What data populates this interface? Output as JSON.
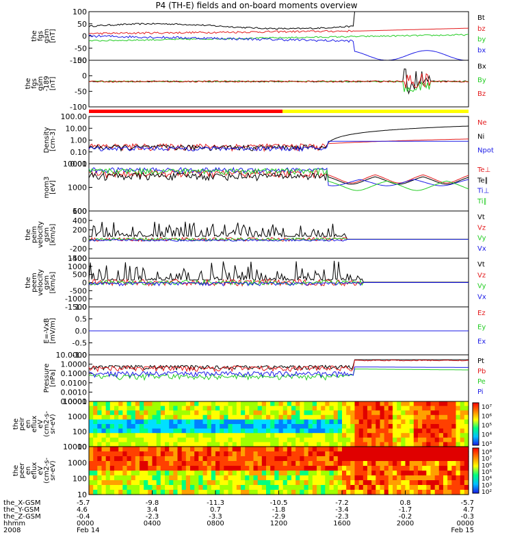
{
  "title": "P4 (TH-E) fields and on-board moments overview",
  "colors": {
    "black": "#000000",
    "red": "#e31a1c",
    "green": "#22cc22",
    "blue": "#1a1ae6",
    "yellow": "#ffff00"
  },
  "chart_data": [
    {
      "type": "line",
      "ylabel": [
        "the",
        "fgs",
        "gsm",
        "[nT]"
      ],
      "yticks": [
        "100",
        "50",
        "0",
        "-50",
        "-100"
      ],
      "ylim": [
        -100,
        100
      ],
      "series": [
        {
          "name": "Bt",
          "color": "black"
        },
        {
          "name": "bz",
          "color": "red"
        },
        {
          "name": "by",
          "color": "green"
        },
        {
          "name": "bx",
          "color": "blue"
        }
      ]
    },
    {
      "type": "line",
      "ylabel": [
        "the",
        "fgs",
        "gsm",
        "-189",
        "[nT]"
      ],
      "yticks": [
        "50",
        "0",
        "-50",
        "-100"
      ],
      "ylim": [
        -120,
        100
      ],
      "series": [
        {
          "name": "Bx",
          "color": "black"
        },
        {
          "name": "By",
          "color": "green"
        },
        {
          "name": "Bz",
          "color": "red"
        }
      ]
    },
    {
      "type": "line",
      "ylabel": [
        "Density",
        "[cm-3]"
      ],
      "yticks": [
        "100.00",
        "10.00",
        "1.00",
        "0.10",
        "0.01"
      ],
      "ylim": [
        0.01,
        100
      ],
      "log": true,
      "series": [
        {
          "name": "Ne",
          "color": "red"
        },
        {
          "name": "Ni",
          "color": "black"
        },
        {
          "name": "Npot",
          "color": "blue"
        }
      ]
    },
    {
      "type": "line",
      "ylabel": [
        "mom3",
        "[eV]"
      ],
      "yticks": [
        "10000",
        "1000",
        "100"
      ],
      "ylim": [
        10,
        10000
      ],
      "log": true,
      "series": [
        {
          "name": "Te⊥",
          "color": "red"
        },
        {
          "name": "Te∥",
          "color": "black"
        },
        {
          "name": "Ti⊥",
          "color": "blue"
        },
        {
          "name": "Ti∥",
          "color": "green"
        }
      ]
    },
    {
      "type": "line",
      "ylabel": [
        "the",
        "peim",
        "velocity",
        "gsm",
        "[km/s]"
      ],
      "yticks": [
        "600",
        "400",
        "200",
        "0",
        "-200",
        "-400"
      ],
      "ylim": [
        -400,
        600
      ],
      "series": [
        {
          "name": "Vt",
          "color": "black"
        },
        {
          "name": "Vz",
          "color": "red"
        },
        {
          "name": "Vy",
          "color": "green"
        },
        {
          "name": "Vx",
          "color": "blue"
        }
      ]
    },
    {
      "type": "line",
      "ylabel": [
        "the",
        "peem",
        "velocity",
        "gsm",
        "[km/s]"
      ],
      "yticks": [
        "1500",
        "1000",
        "500",
        "0",
        "-500",
        "-1000",
        "-1500"
      ],
      "ylim": [
        -1500,
        1500
      ],
      "series": [
        {
          "name": "Vt",
          "color": "black"
        },
        {
          "name": "Vz",
          "color": "red"
        },
        {
          "name": "Vy",
          "color": "green"
        },
        {
          "name": "Vx",
          "color": "blue"
        }
      ]
    },
    {
      "type": "line",
      "ylabel": [
        "E=-VxB",
        "[mV/m]"
      ],
      "yticks": [
        "1.0",
        "0.5",
        "0.0",
        "-0.5",
        "-1.0"
      ],
      "ylim": [
        -1,
        1
      ],
      "series": [
        {
          "name": "Ez",
          "color": "red"
        },
        {
          "name": "Ey",
          "color": "green"
        },
        {
          "name": "Ex",
          "color": "blue"
        }
      ]
    },
    {
      "type": "line",
      "ylabel": [
        "Pressure",
        "[nPa]"
      ],
      "yticks": [
        "10.0000",
        "1.0000",
        "0.1000",
        "0.0100",
        "0.0010",
        "0.0001"
      ],
      "ylim": [
        0.0001,
        10
      ],
      "log": true,
      "series": [
        {
          "name": "Pt",
          "color": "black"
        },
        {
          "name": "Pb",
          "color": "red"
        },
        {
          "name": "Pe",
          "color": "green"
        },
        {
          "name": "Pi",
          "color": "blue"
        }
      ]
    },
    {
      "type": "heatmap",
      "ylabel": [
        "the",
        "peir",
        "en",
        "eflux",
        "eV",
        "(cm2-s-",
        "sr-eV)"
      ],
      "yticks": [
        "10000",
        "1000",
        "100",
        "10"
      ],
      "ylim": [
        10,
        10000
      ],
      "log": true,
      "colorbar": [
        "10⁷",
        "10⁶",
        "10⁵",
        "10⁴",
        "10³"
      ]
    },
    {
      "type": "heatmap",
      "ylabel": [
        "the",
        "peer",
        "en",
        "eflux",
        "eV",
        "(cm2-s-",
        "sr-eV)"
      ],
      "yticks": [
        "10000",
        "1000",
        "100",
        "10"
      ],
      "ylim": [
        10,
        10000
      ],
      "log": true,
      "colorbar": [
        "10⁸",
        "10⁷",
        "10⁶",
        "10⁵",
        "10⁴",
        "10³",
        "10²"
      ]
    }
  ],
  "xaxis": {
    "row_labels": [
      "the_X-GSM",
      "the_Y-GSM",
      "the_Z-GSM",
      "hhmm",
      "2008"
    ],
    "columns": [
      {
        "x": "-5.7",
        "y": "4.6",
        "z": "-0.4",
        "t": "0000",
        "d": "Feb 14"
      },
      {
        "x": "-9.8",
        "y": "3.4",
        "z": "-2.3",
        "t": "0400",
        "d": ""
      },
      {
        "x": "-11.3",
        "y": "0.7",
        "z": "-3.3",
        "t": "0800",
        "d": ""
      },
      {
        "x": "-10.5",
        "y": "-1.8",
        "z": "-2.9",
        "t": "1200",
        "d": ""
      },
      {
        "x": "-7.2",
        "y": "-3.4",
        "z": "-2.3",
        "t": "1600",
        "d": ""
      },
      {
        "x": "0.8",
        "y": "-1.7",
        "z": "-0.2",
        "t": "2000",
        "d": ""
      },
      {
        "x": "-5.7",
        "y": "4.7",
        "z": "-0.3",
        "t": "0000",
        "d": "Feb 15"
      }
    ]
  }
}
